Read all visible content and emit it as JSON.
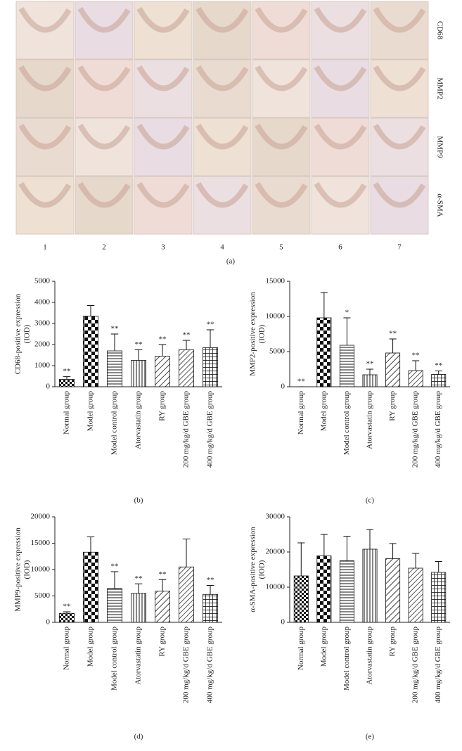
{
  "figure_a": {
    "row_labels": [
      "CD68",
      "MMP2",
      "MMP9",
      "α-SMA"
    ],
    "column_labels": [
      "1",
      "2",
      "3",
      "4",
      "5",
      "6",
      "7"
    ],
    "panel_label": "(a)"
  },
  "chart_data": [
    {
      "type": "bar",
      "panel_label": "(b)",
      "ylabel": [
        "CD68-positive expression",
        "(IOD)"
      ],
      "categories": [
        "Normal group",
        "Model group",
        "Model control group",
        "Atorvastatin group",
        "RY group",
        "200 mg/kg/d GBE group",
        "400 mg/kg/d GBE group"
      ],
      "values": [
        350,
        3350,
        1700,
        1250,
        1450,
        1750,
        1850
      ],
      "errors": [
        130,
        500,
        800,
        500,
        550,
        450,
        850
      ],
      "annotations": [
        "**",
        null,
        "**",
        "**",
        "**",
        "**",
        "**"
      ],
      "ylim": [
        0,
        5000
      ],
      "yticks": [
        0,
        1000,
        2000,
        3000,
        4000,
        5000
      ]
    },
    {
      "type": "bar",
      "panel_label": "(c)",
      "ylabel": [
        "MMP2-positive expression",
        "(IOD)"
      ],
      "categories": [
        "Normal group",
        "Model group",
        "Model control group",
        "Atorvastatin group",
        "RY group",
        "200 mg/kg/d GBE group",
        "400 mg/kg/d GBE group"
      ],
      "values": [
        0,
        9800,
        5900,
        1700,
        4800,
        2300,
        1750
      ],
      "errors": [
        0,
        3600,
        3900,
        800,
        2000,
        1400,
        500
      ],
      "annotations": [
        "**",
        null,
        "*",
        "**",
        "**",
        "**",
        "**"
      ],
      "ylim": [
        0,
        15000
      ],
      "yticks": [
        0,
        5000,
        10000,
        15000
      ]
    },
    {
      "type": "bar",
      "panel_label": "(d)",
      "ylabel": [
        "MMP9-positive expression",
        "(IOD)"
      ],
      "categories": [
        "Normal group",
        "Model group",
        "Model control group",
        "Atorvastatin group",
        "RY group",
        "200 mg/kg/d GBE group",
        "400 mg/kg/d GBE group"
      ],
      "values": [
        1700,
        13300,
        6400,
        5500,
        5900,
        10500,
        5300
      ],
      "errors": [
        300,
        2900,
        3200,
        1800,
        2200,
        5300,
        1700
      ],
      "annotations": [
        "**",
        null,
        "**",
        "**",
        "**",
        null,
        "**"
      ],
      "ylim": [
        0,
        20000
      ],
      "yticks": [
        0,
        5000,
        10000,
        15000,
        20000
      ]
    },
    {
      "type": "bar",
      "panel_label": "(e)",
      "ylabel": [
        "α-SMA-positive expression",
        "(IOD)"
      ],
      "categories": [
        "Normal group",
        "Model group",
        "Model control group",
        "Atorvastatin group",
        "RY group",
        "200 mg/kg/d GBE group",
        "400 mg/kg/d GBE group"
      ],
      "values": [
        13200,
        18900,
        17500,
        20800,
        18100,
        15400,
        14200
      ],
      "errors": [
        9400,
        6100,
        7000,
        5600,
        4300,
        4200,
        3100
      ],
      "annotations": [
        null,
        null,
        null,
        null,
        null,
        null,
        null
      ],
      "ylim": [
        0,
        30000
      ],
      "yticks": [
        0,
        10000,
        20000,
        30000
      ]
    }
  ]
}
